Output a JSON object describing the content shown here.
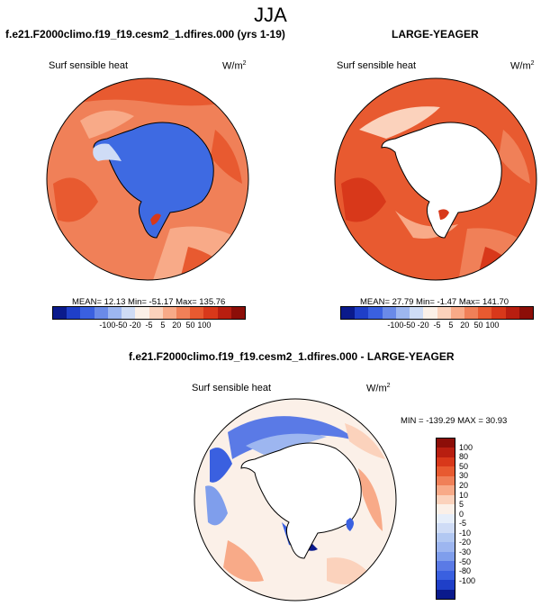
{
  "title": "JJA",
  "panels": [
    {
      "title": "f.e21.F2000climo.f19_f19.cesm2_1.dfires.000 (yrs 1-19)",
      "variable": "Surf sensible heat",
      "units_base": "W/m",
      "units_exp": "2",
      "stats": "MEAN=  12.13  Min= -51.17  Max= 135.76"
    },
    {
      "title": "LARGE-YEAGER",
      "variable": "Surf sensible heat",
      "units_base": "W/m",
      "units_exp": "2",
      "stats": "MEAN=  27.79  Min=  -1.47  Max= 141.70"
    },
    {
      "title": "f.e21.F2000climo.f19_f19.cesm2_1.dfires.000 - LARGE-YEAGER",
      "variable": "Surf sensible heat",
      "units_base": "W/m",
      "units_exp": "2",
      "stats": "MIN = -139.29 MAX =  30.93"
    }
  ],
  "colorbar_top": {
    "colors": [
      "#0a1a8c",
      "#1f3fc8",
      "#3a60e0",
      "#6a8ae8",
      "#9db6f0",
      "#cfdcf6",
      "#fbf0e8",
      "#fbd2bc",
      "#f8aa88",
      "#f08058",
      "#e85a30",
      "#d8381a",
      "#b81e10",
      "#8c0e08"
    ],
    "ticks": [
      "-100",
      "-50",
      "-20",
      "-5",
      "5",
      "20",
      "50",
      "100"
    ]
  },
  "colorbar_diff": {
    "colors": [
      "#8c0e08",
      "#b81e10",
      "#d8381a",
      "#e85a30",
      "#f08058",
      "#f8aa88",
      "#fbd2bc",
      "#fbf0e8",
      "#e6eefa",
      "#cfdcf6",
      "#b2c8f2",
      "#9db6f0",
      "#7f9eec",
      "#5a7ae6",
      "#3a60e0",
      "#1f3fc8",
      "#0a1a8c"
    ],
    "ticks": [
      "100",
      "80",
      "50",
      "30",
      "20",
      "10",
      "5",
      "0",
      "-5",
      "-10",
      "-20",
      "-30",
      "-50",
      "-80",
      "-100"
    ]
  }
}
